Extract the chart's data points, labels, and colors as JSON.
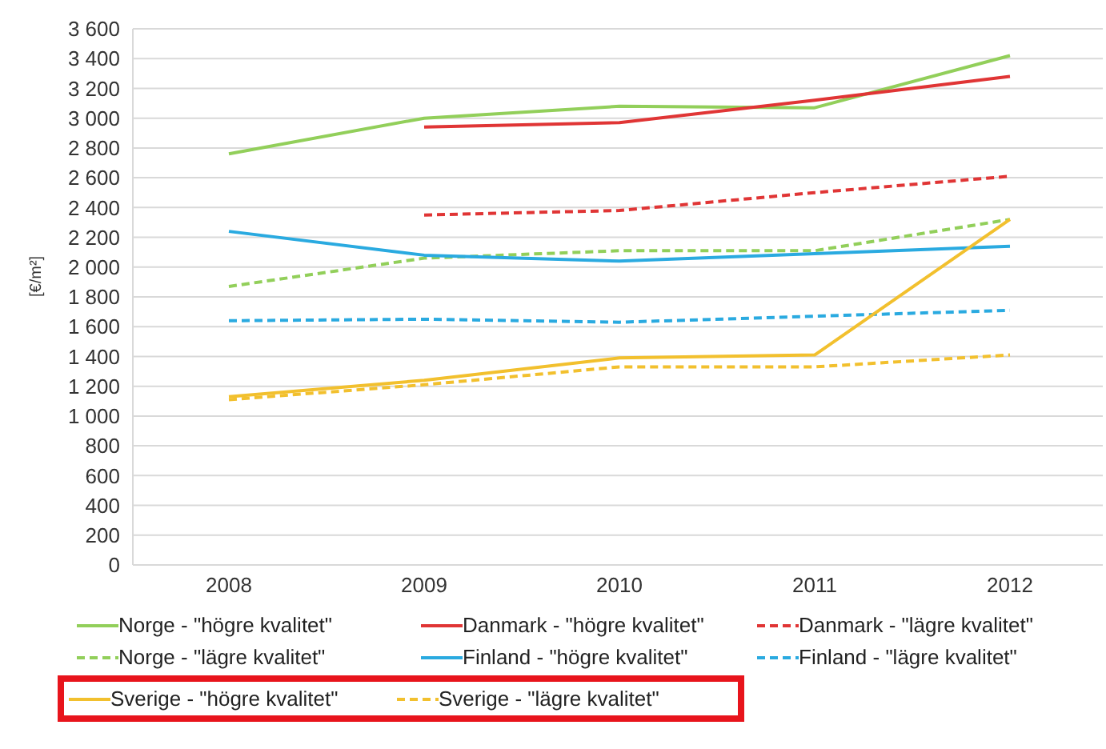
{
  "chart_data": {
    "type": "line",
    "ylabel": "[€/m²]",
    "categories": [
      "2008",
      "2009",
      "2010",
      "2011",
      "2012"
    ],
    "ylim": [
      0,
      3600
    ],
    "yticks": [
      0,
      200,
      400,
      600,
      800,
      {
        "value": 1000,
        "label": "1 000"
      },
      {
        "value": 1200,
        "label": "1 200"
      },
      {
        "value": 1400,
        "label": "1 400"
      },
      {
        "value": 1600,
        "label": "1 600"
      },
      {
        "value": 1800,
        "label": "1 800"
      },
      {
        "value": 2000,
        "label": "2 000"
      },
      {
        "value": 2200,
        "label": "2 200"
      },
      {
        "value": 2400,
        "label": "2 400"
      },
      {
        "value": 2600,
        "label": "2 600"
      },
      {
        "value": 2800,
        "label": "2 800"
      },
      {
        "value": 3000,
        "label": "3 000"
      },
      {
        "value": 3200,
        "label": "3 200"
      },
      {
        "value": 3400,
        "label": "3 400"
      },
      {
        "value": 3600,
        "label": "3 600"
      }
    ],
    "grid": "y",
    "legend": "bottom",
    "marker": "none",
    "series": [
      {
        "name": "Norge - \"högre kvalitet\"",
        "color": "#92cf5a",
        "line_style": "solid",
        "values": [
          2760,
          3000,
          3080,
          3070,
          3420
        ]
      },
      {
        "name": "Danmark - \"högre kvalitet\"",
        "color": "#e03535",
        "line_style": "solid",
        "values": [
          null,
          2940,
          2970,
          3120,
          3280
        ]
      },
      {
        "name": "Danmark - \"lägre kvalitet\"",
        "color": "#e03535",
        "line_style": "dashed",
        "values": [
          null,
          2350,
          2380,
          2500,
          2610
        ]
      },
      {
        "name": "Norge - \"lägre kvalitet\"",
        "color": "#92cf5a",
        "line_style": "dashed",
        "values": [
          1870,
          2060,
          2110,
          2110,
          2320
        ]
      },
      {
        "name": "Finland - \"högre kvalitet\"",
        "color": "#2aaae0",
        "line_style": "solid",
        "values": [
          2240,
          2080,
          2040,
          2090,
          2140
        ]
      },
      {
        "name": "Finland - \"lägre kvalitet\"",
        "color": "#2aaae0",
        "line_style": "dashed",
        "values": [
          1640,
          1650,
          1630,
          1670,
          1710
        ]
      },
      {
        "name": "Sverige - \"högre kvalitet\"",
        "color": "#f2c02e",
        "line_style": "solid",
        "values": [
          1130,
          1240,
          1390,
          1410,
          2320
        ]
      },
      {
        "name": "Sverige - \"lägre kvalitet\"",
        "color": "#f2c02e",
        "line_style": "dashed",
        "values": [
          1110,
          1210,
          1330,
          1330,
          1410
        ]
      }
    ]
  }
}
